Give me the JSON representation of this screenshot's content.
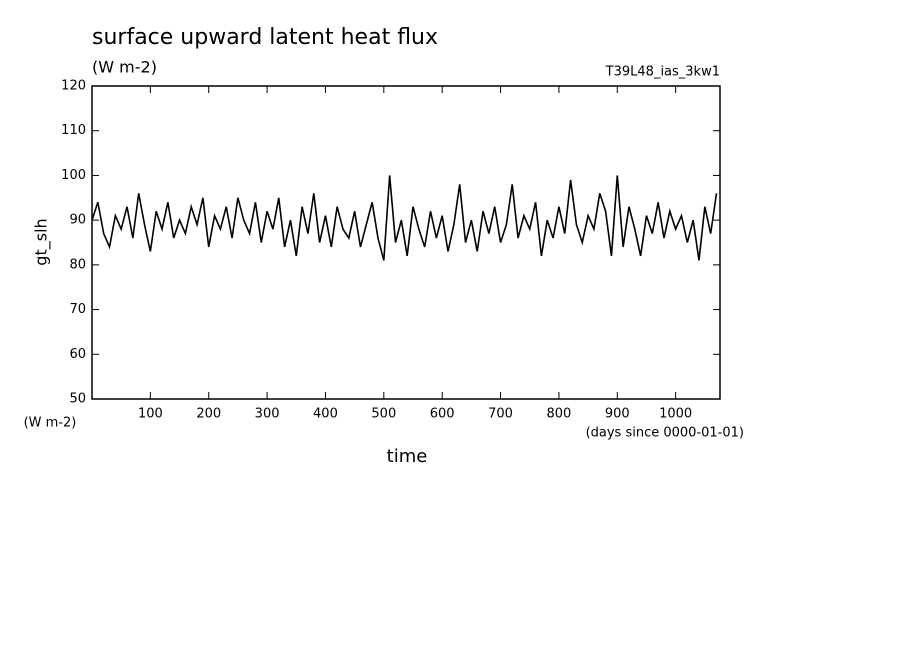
{
  "chart_data": {
    "type": "line",
    "title": "surface upward latent heat flux",
    "subtitle": "(W m-2)",
    "run_label": "T39L48_ias_3kw1",
    "y_label": "gt_slh",
    "y_unit": "(W m-2)",
    "x_label": "time",
    "x_unit": "(days since 0000-01-01)",
    "color": "#000000",
    "xlim": [
      0,
      1076
    ],
    "ylim": [
      50,
      120
    ],
    "xticks": [
      100,
      200,
      300,
      400,
      500,
      600,
      700,
      800,
      900,
      1000
    ],
    "yticks": [
      50,
      60,
      70,
      80,
      90,
      100,
      110,
      120
    ],
    "x": [
      0,
      10,
      20,
      30,
      40,
      50,
      60,
      70,
      80,
      90,
      100,
      110,
      120,
      130,
      140,
      150,
      160,
      170,
      180,
      190,
      200,
      210,
      220,
      230,
      240,
      250,
      260,
      270,
      280,
      290,
      300,
      310,
      320,
      330,
      340,
      350,
      360,
      370,
      380,
      390,
      400,
      410,
      420,
      430,
      440,
      450,
      460,
      470,
      480,
      490,
      500,
      510,
      520,
      530,
      540,
      550,
      560,
      570,
      580,
      590,
      600,
      610,
      620,
      630,
      640,
      650,
      660,
      670,
      680,
      690,
      700,
      710,
      720,
      730,
      740,
      750,
      760,
      770,
      780,
      790,
      800,
      810,
      820,
      830,
      840,
      850,
      860,
      870,
      880,
      890,
      900,
      910,
      920,
      930,
      940,
      950,
      960,
      970,
      980,
      990,
      1000,
      1010,
      1020,
      1030,
      1040,
      1050,
      1060,
      1070
    ],
    "values": [
      90,
      94,
      87,
      84,
      91,
      88,
      93,
      86,
      96,
      89,
      83,
      92,
      88,
      94,
      86,
      90,
      87,
      93,
      89,
      95,
      84,
      91,
      88,
      93,
      86,
      95,
      90,
      87,
      94,
      85,
      92,
      88,
      95,
      84,
      90,
      82,
      93,
      87,
      96,
      85,
      91,
      84,
      93,
      88,
      86,
      92,
      84,
      89,
      94,
      86,
      81,
      100,
      85,
      90,
      82,
      93,
      88,
      84,
      92,
      86,
      91,
      83,
      89,
      98,
      85,
      90,
      83,
      92,
      87,
      93,
      85,
      89,
      98,
      86,
      91,
      88,
      94,
      82,
      90,
      86,
      93,
      87,
      99,
      89,
      85,
      91,
      88,
      96,
      92,
      82,
      100,
      84,
      93,
      88,
      82,
      91,
      87,
      94,
      86,
      92,
      88,
      91,
      85,
      90,
      81,
      93,
      87,
      96
    ]
  }
}
